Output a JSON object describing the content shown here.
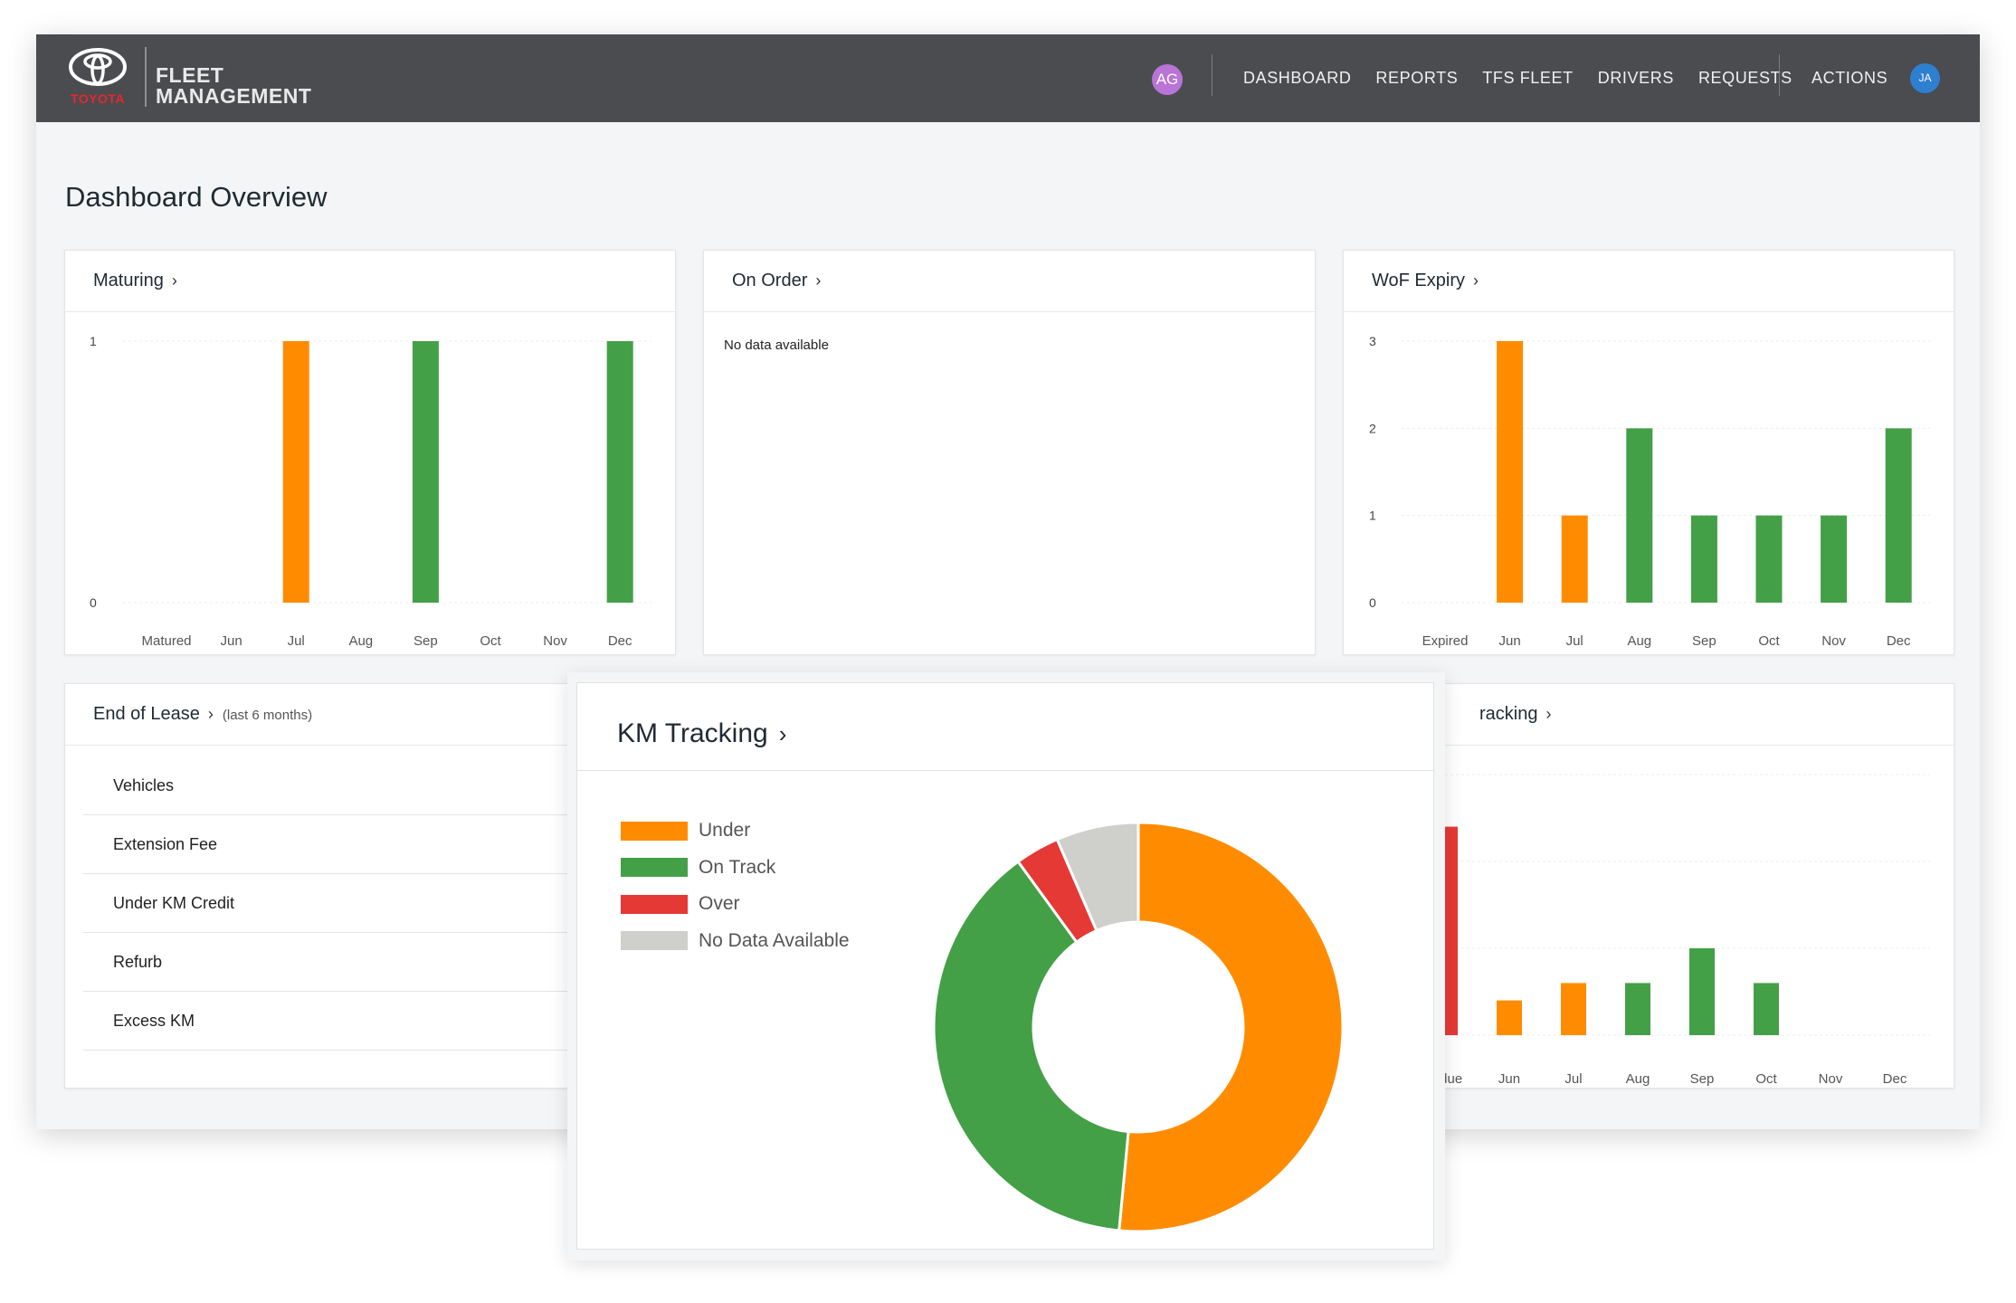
{
  "header": {
    "brand": {
      "maker": "TOYOTA",
      "line1": "FLEET",
      "line2": "MANAGEMENT"
    },
    "avatar_left": "AG",
    "avatar_left_color": "#b974d6",
    "nav": [
      "DASHBOARD",
      "REPORTS",
      "TFS FLEET",
      "DRIVERS",
      "REQUESTS"
    ],
    "actions": "ACTIONS",
    "avatar_right": "JA",
    "avatar_right_color": "#2f7fd0",
    "bar_color": "#4a4c50"
  },
  "page_title": "Dashboard Overview",
  "colors": {
    "orange": "#ff8c00",
    "green": "#43a047",
    "red": "#e53935",
    "grey": "#cfcfcb"
  },
  "cards": {
    "maturing": {
      "title": "Maturing"
    },
    "on_order": {
      "title": "On Order",
      "empty": "No data available"
    },
    "wof": {
      "title": "WoF Expiry"
    },
    "end_of_lease": {
      "title": "End of Lease",
      "subtitle": "(last 6 months)",
      "rows": [
        "Vehicles",
        "Extension Fee",
        "Under KM Credit",
        "Refurb",
        "Excess KM"
      ]
    },
    "tracking_bg": {
      "title_visible": "racking"
    },
    "km": {
      "title": "KM Tracking",
      "legend": [
        "Under",
        "On Track",
        "Over",
        "No Data Available"
      ]
    }
  },
  "chart_data": [
    {
      "type": "bar",
      "id": "maturing",
      "categories": [
        "Matured",
        "Jun",
        "Jul",
        "Aug",
        "Sep",
        "Oct",
        "Nov",
        "Dec"
      ],
      "values": [
        0,
        0,
        1,
        0,
        1,
        0,
        0,
        1
      ],
      "bar_colors": [
        "#ff8c00",
        "#ff8c00",
        "#ff8c00",
        "#43a047",
        "#43a047",
        "#43a047",
        "#43a047",
        "#43a047"
      ],
      "yticks": [
        0,
        1
      ],
      "ylim": [
        0,
        1
      ]
    },
    {
      "type": "bar",
      "id": "wof",
      "categories": [
        "Expired",
        "Jun",
        "Jul",
        "Aug",
        "Sep",
        "Oct",
        "Nov",
        "Dec"
      ],
      "values": [
        0,
        3,
        1,
        2,
        1,
        1,
        1,
        2
      ],
      "bar_colors": [
        "#ff8c00",
        "#ff8c00",
        "#ff8c00",
        "#43a047",
        "#43a047",
        "#43a047",
        "#43a047",
        "#43a047"
      ],
      "yticks": [
        0,
        1,
        2,
        3
      ],
      "ylim": [
        0,
        3
      ]
    },
    {
      "type": "bar",
      "id": "tracking",
      "categories": [
        "erdue",
        "Jun",
        "Jul",
        "Aug",
        "Sep",
        "Oct",
        "Nov",
        "Dec"
      ],
      "values": [
        2.4,
        0.4,
        0.6,
        0.6,
        1,
        0.6,
        0,
        0
      ],
      "bar_colors": [
        "#e53935",
        "#ff8c00",
        "#ff8c00",
        "#43a047",
        "#43a047",
        "#43a047",
        "#43a047",
        "#43a047"
      ],
      "ylim": [
        0,
        3
      ]
    },
    {
      "type": "pie",
      "id": "km_tracking",
      "labels": [
        "Under",
        "On Track",
        "Over",
        "No Data Available"
      ],
      "values": [
        51.5,
        38.5,
        3.5,
        6.5
      ],
      "colors": [
        "#ff8c00",
        "#43a047",
        "#e53935",
        "#cfcfcb"
      ],
      "donut": true
    }
  ]
}
